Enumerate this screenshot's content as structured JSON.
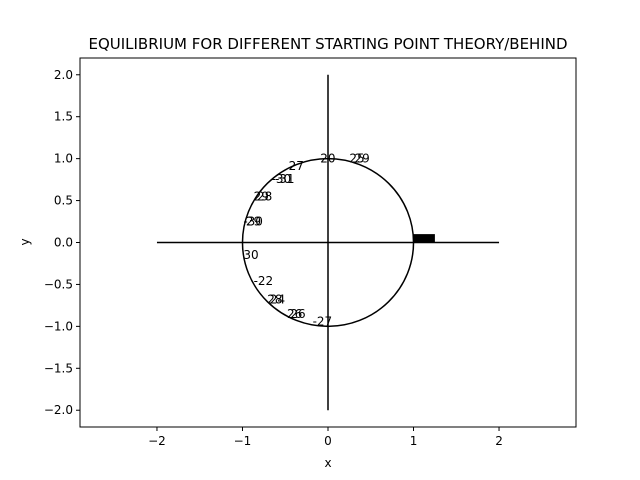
{
  "chart_data": {
    "type": "line",
    "title": "EQUILIBRIUM FOR DIFFERENT STARTING POINT THEORY/BEHIND",
    "xlabel": "x",
    "ylabel": "y",
    "xlim": [
      -2.9,
      2.9
    ],
    "ylim": [
      -2.2,
      2.2
    ],
    "xticks": [
      -2,
      -1,
      0,
      1,
      2
    ],
    "xtick_labels": [
      "−2",
      "−1",
      "0",
      "1",
      "2"
    ],
    "yticks": [
      2.0,
      1.5,
      1.0,
      0.5,
      0.0,
      -0.5,
      -1.0,
      -1.5,
      -2.0
    ],
    "ytick_labels": [
      "2.0",
      "1.5",
      "1.0",
      "0.5",
      "0.0",
      "−0.5",
      "−1.0",
      "−1.5",
      "−2.0"
    ],
    "grid": false,
    "legend": "none",
    "color": "#000000",
    "series": [
      {
        "kind": "circle",
        "center": [
          0,
          0
        ],
        "radius": 1
      },
      {
        "kind": "segment",
        "points": [
          [
            -2,
            0
          ],
          [
            2,
            0
          ]
        ]
      },
      {
        "kind": "segment",
        "points": [
          [
            0,
            -2
          ],
          [
            0,
            2
          ]
        ]
      },
      {
        "kind": "band",
        "x": [
          1.0,
          1.25
        ],
        "y": [
          0.0,
          0.1
        ]
      }
    ],
    "annotations": [
      {
        "text": "20",
        "x": -0.09,
        "y": 1.0
      },
      {
        "text": "25",
        "x": 0.25,
        "y": 1.0
      },
      {
        "text": "29",
        "x": 0.31,
        "y": 1.0
      },
      {
        "text": "27",
        "x": -0.46,
        "y": 0.91
      },
      {
        "text": "-30",
        "x": -0.66,
        "y": 0.76
      },
      {
        "text": "-31",
        "x": -0.62,
        "y": 0.76
      },
      {
        "text": "29",
        "x": -0.87,
        "y": 0.55
      },
      {
        "text": "28",
        "x": -0.83,
        "y": 0.55
      },
      {
        "text": "-30",
        "x": -0.99,
        "y": 0.25
      },
      {
        "text": "29",
        "x": -0.96,
        "y": 0.25
      },
      {
        "text": "30",
        "x": -0.99,
        "y": -0.15
      },
      {
        "text": "-22",
        "x": -0.87,
        "y": -0.46
      },
      {
        "text": "28",
        "x": -0.71,
        "y": -0.68
      },
      {
        "text": "24",
        "x": -0.68,
        "y": -0.68
      },
      {
        "text": "26",
        "x": -0.48,
        "y": -0.85
      },
      {
        "text": "26",
        "x": -0.44,
        "y": -0.85
      },
      {
        "text": "-27",
        "x": -0.18,
        "y": -0.94
      }
    ]
  }
}
